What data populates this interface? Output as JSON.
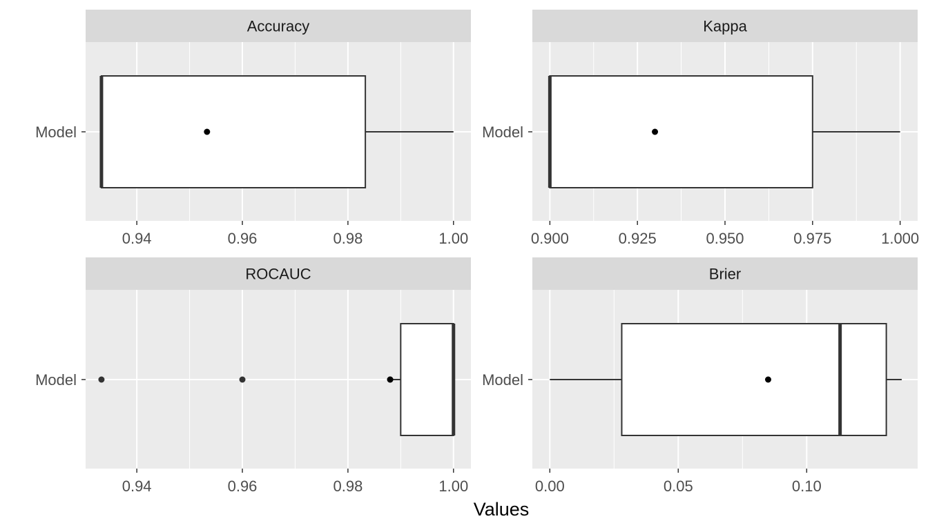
{
  "chart_data": {
    "type": "boxplot",
    "xlabel": "Values",
    "ylabel": "",
    "category": "Model",
    "panels": [
      {
        "title": "Accuracy",
        "xlim": [
          0.9303,
          1.0033
        ],
        "ticks": [
          0.94,
          0.96,
          0.98,
          1.0
        ],
        "tick_labels": [
          "0.94",
          "0.96",
          "0.98",
          "1.00"
        ],
        "box": {
          "min": 0.9333,
          "q1": 0.9333,
          "median": 0.9333,
          "q3": 0.9833,
          "max": 1.0
        },
        "mean": 0.9533,
        "outliers": []
      },
      {
        "title": "Kappa",
        "xlim": [
          0.895,
          1.005
        ],
        "ticks": [
          0.9,
          0.925,
          0.95,
          0.975,
          1.0
        ],
        "tick_labels": [
          "0.900",
          "0.925",
          "0.950",
          "0.975",
          "1.000"
        ],
        "box": {
          "min": 0.9,
          "q1": 0.9,
          "median": 0.9,
          "q3": 0.975,
          "max": 1.0
        },
        "mean": 0.93,
        "outliers": []
      },
      {
        "title": "ROCAUC",
        "xlim": [
          0.9303,
          1.0033
        ],
        "ticks": [
          0.94,
          0.96,
          0.98,
          1.0
        ],
        "tick_labels": [
          "0.94",
          "0.96",
          "0.98",
          "1.00"
        ],
        "box": {
          "min": 0.988,
          "q1": 0.99,
          "median": 1.0,
          "q3": 1.0,
          "max": 1.0
        },
        "mean": 0.988,
        "outliers": [
          0.9333,
          0.96,
          0.988
        ]
      },
      {
        "title": "Brier",
        "xlim": [
          -0.0068,
          0.1432
        ],
        "ticks": [
          0.0,
          0.05,
          0.1
        ],
        "tick_labels": [
          "0.00",
          "0.05",
          "0.10"
        ],
        "box": {
          "min": 0.0,
          "q1": 0.028,
          "median": 0.113,
          "q3": 0.131,
          "max": 0.137
        },
        "mean": 0.085,
        "outliers": []
      }
    ]
  }
}
